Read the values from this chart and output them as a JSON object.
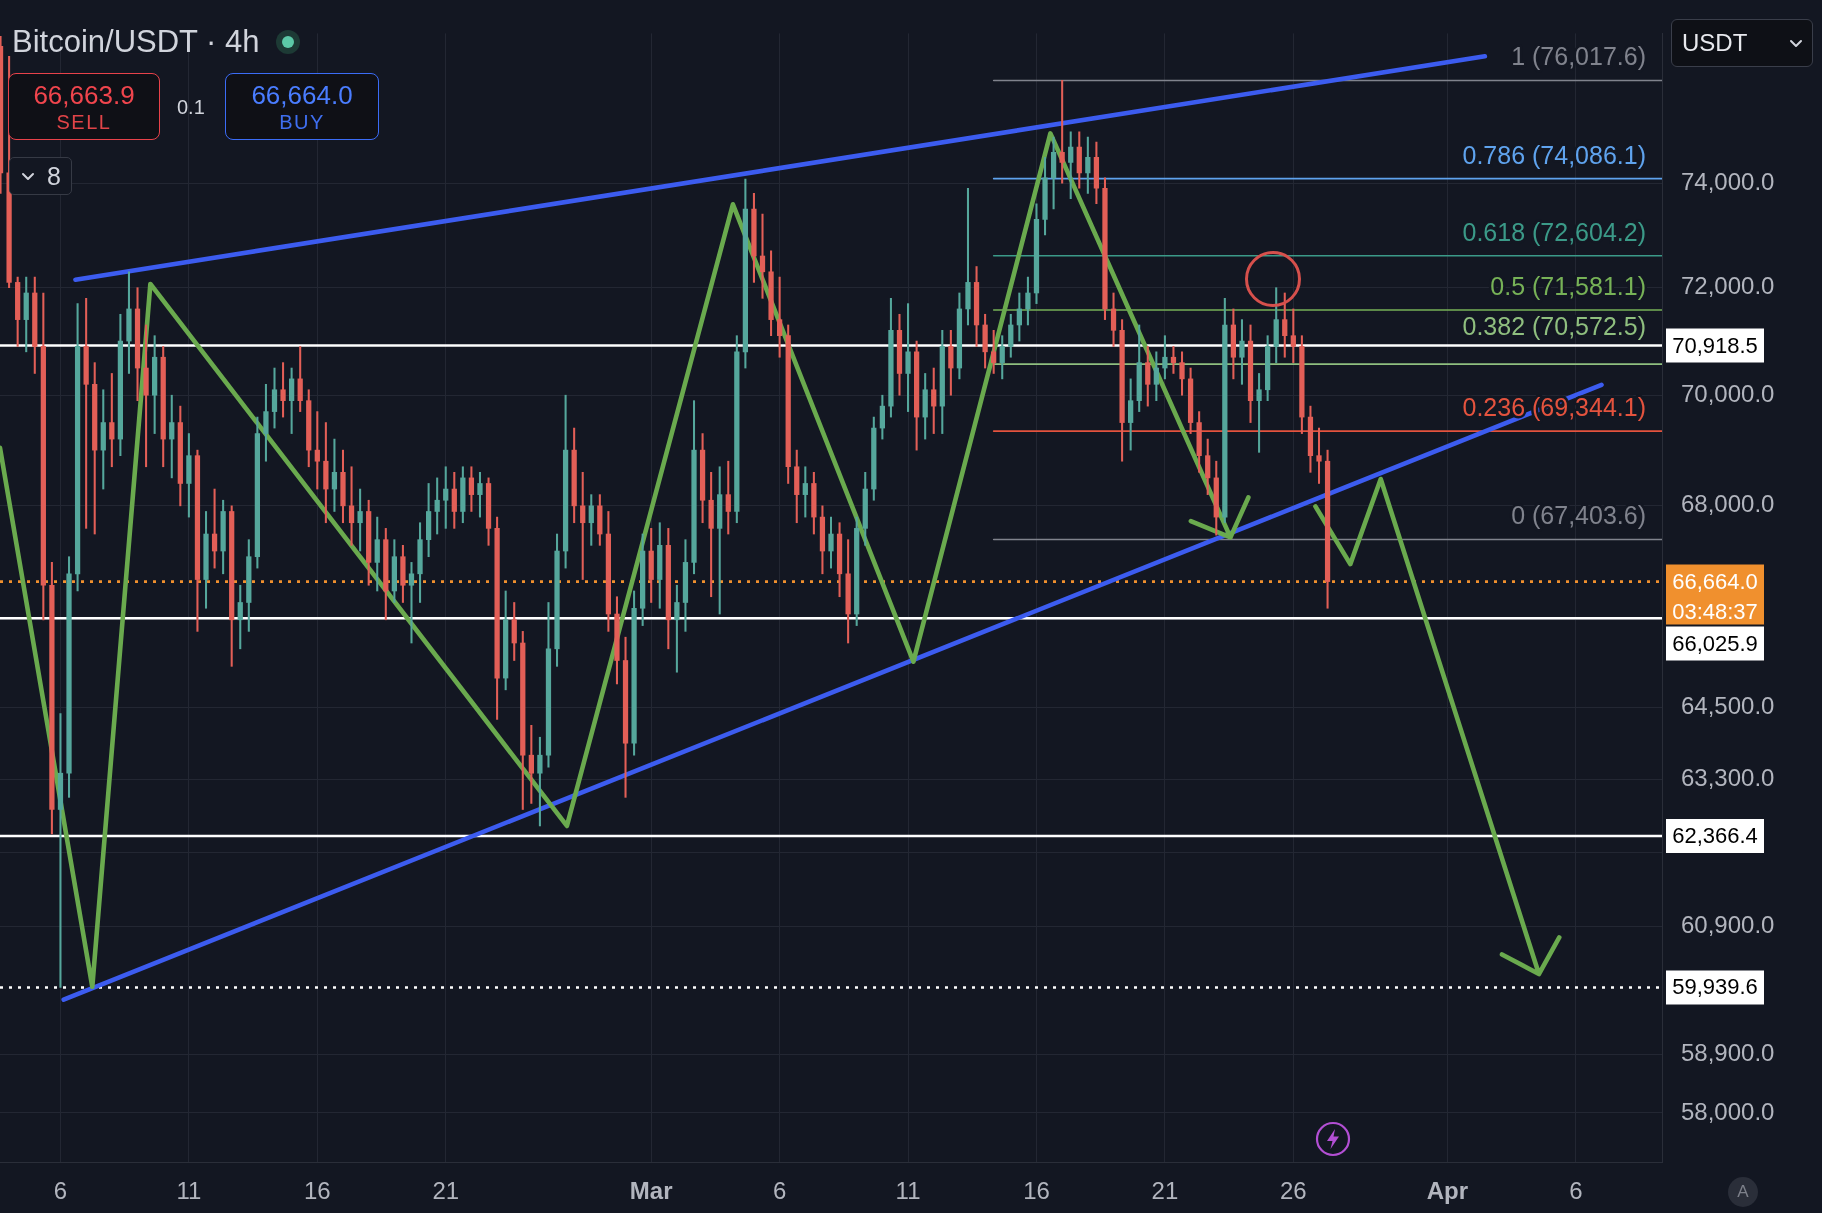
{
  "chart_data": {
    "type": "candlestick",
    "title": "Bitcoin/USDT · 4h",
    "x": [
      "--02-03T16:00",
      "--02-04T00:00",
      "--02-04T08:00",
      "--02-04T16:00",
      "--02-05T00:00",
      "--02-05T08:00",
      "--02-05T16:00",
      "--02-06T00:00",
      "--02-06T08:00",
      "--02-06T16:00",
      "--02-07T00:00",
      "--02-07T08:00",
      "--02-07T16:00",
      "--02-08T00:00",
      "--02-08T08:00",
      "--02-08T16:00",
      "--02-09T00:00",
      "--02-09T08:00",
      "--02-09T16:00",
      "--02-10T00:00",
      "--02-10T08:00",
      "--02-10T16:00",
      "--02-11T00:00",
      "--02-11T08:00",
      "--02-11T16:00",
      "--02-12T00:00",
      "--02-12T08:00",
      "--02-12T16:00",
      "--02-13T00:00",
      "--02-13T08:00",
      "--02-13T16:00",
      "--02-14T00:00",
      "--02-14T08:00",
      "--02-14T16:00",
      "--02-15T00:00",
      "--02-15T08:00",
      "--02-15T16:00",
      "--02-16T00:00",
      "--02-16T08:00",
      "--02-16T16:00",
      "--02-17T00:00",
      "--02-17T08:00",
      "--02-17T16:00",
      "--02-18T00:00",
      "--02-18T08:00",
      "--02-18T16:00",
      "--02-19T00:00",
      "--02-19T08:00",
      "--02-19T16:00",
      "--02-20T00:00",
      "--02-20T08:00",
      "--02-20T16:00",
      "--02-21T00:00",
      "--02-21T08:00",
      "--02-21T16:00",
      "--02-22T00:00",
      "--02-22T08:00",
      "--02-22T16:00",
      "--02-23T00:00",
      "--02-23T08:00",
      "--02-23T16:00",
      "--02-24T00:00",
      "--02-24T08:00",
      "--02-24T16:00",
      "--02-25T00:00",
      "--02-25T08:00",
      "--02-25T16:00",
      "--02-26T00:00",
      "--02-26T08:00",
      "--02-26T16:00",
      "--02-27T00:00",
      "--02-27T08:00",
      "--02-27T16:00",
      "--02-28T00:00",
      "--02-28T08:00",
      "--02-28T16:00",
      "--03-01T00:00",
      "--03-01T08:00",
      "--03-01T16:00",
      "--03-02T00:00",
      "--03-02T08:00",
      "--03-02T16:00",
      "--03-03T00:00",
      "--03-03T08:00",
      "--03-03T16:00",
      "--03-04T00:00",
      "--03-04T08:00",
      "--03-04T16:00",
      "--03-05T00:00",
      "--03-05T08:00",
      "--03-05T16:00",
      "--03-06T00:00",
      "--03-06T08:00",
      "--03-06T16:00",
      "--03-07T00:00",
      "--03-07T08:00",
      "--03-07T16:00",
      "--03-08T00:00",
      "--03-08T08:00",
      "--03-08T16:00",
      "--03-09T00:00",
      "--03-09T08:00",
      "--03-09T16:00",
      "--03-10T00:00",
      "--03-10T08:00",
      "--03-10T16:00",
      "--03-11T00:00",
      "--03-11T08:00",
      "--03-11T16:00",
      "--03-12T00:00",
      "--03-12T08:00",
      "--03-12T16:00",
      "--03-13T00:00",
      "--03-13T08:00",
      "--03-13T16:00",
      "--03-14T00:00",
      "--03-14T08:00",
      "--03-14T16:00",
      "--03-15T00:00",
      "--03-15T08:00",
      "--03-15T16:00",
      "--03-16T00:00",
      "--03-16T08:00",
      "--03-16T16:00",
      "--03-17T00:00",
      "--03-17T08:00",
      "--03-17T16:00",
      "--03-18T00:00",
      "--03-18T08:00",
      "--03-18T16:00",
      "--03-19T00:00",
      "--03-19T08:00",
      "--03-19T16:00",
      "--03-20T00:00",
      "--03-20T08:00",
      "--03-20T16:00",
      "--03-21T00:00",
      "--03-21T08:00",
      "--03-21T16:00",
      "--03-22T00:00",
      "--03-22T08:00",
      "--03-22T16:00",
      "--03-23T00:00",
      "--03-23T08:00",
      "--03-23T16:00",
      "--03-24T00:00",
      "--03-24T08:00",
      "--03-24T16:00",
      "--03-25T00:00",
      "--03-25T08:00",
      "--03-25T16:00",
      "--03-26T00:00",
      "--03-26T08:00",
      "--03-26T16:00",
      "--03-27T00:00",
      "--03-27T08:00"
    ],
    "ohlc": [
      [
        76700,
        76900,
        73800,
        74200
      ],
      [
        74200,
        76500,
        72000,
        72100
      ],
      [
        72100,
        72200,
        70900,
        71400
      ],
      [
        71400,
        72200,
        70800,
        71900
      ],
      [
        71900,
        72200,
        70400,
        70900
      ],
      [
        70900,
        71900,
        66000,
        66600
      ],
      [
        66600,
        67000,
        62400,
        62800
      ],
      [
        62800,
        64400,
        59940,
        63400
      ],
      [
        63400,
        67100,
        63000,
        66800
      ],
      [
        66800,
        71700,
        66500,
        70900
      ],
      [
        70900,
        71800,
        67600,
        70200
      ],
      [
        70200,
        70600,
        67500,
        69000
      ],
      [
        69000,
        70100,
        68300,
        69500
      ],
      [
        69500,
        70400,
        68700,
        69200
      ],
      [
        69200,
        71500,
        68900,
        71000
      ],
      [
        71000,
        72300,
        70400,
        71600
      ],
      [
        71600,
        72000,
        69900,
        70500
      ],
      [
        70500,
        71300,
        68700,
        70000
      ],
      [
        70000,
        71100,
        69300,
        70700
      ],
      [
        70700,
        70900,
        68700,
        69200
      ],
      [
        69200,
        70000,
        68500,
        69500
      ],
      [
        69500,
        69800,
        68000,
        68400
      ],
      [
        68400,
        69300,
        67800,
        68900
      ],
      [
        68900,
        69000,
        65800,
        66700
      ],
      [
        66700,
        67900,
        66200,
        67500
      ],
      [
        67500,
        68300,
        66900,
        67200
      ],
      [
        67200,
        68100,
        66800,
        67900
      ],
      [
        67900,
        68000,
        65200,
        66000
      ],
      [
        66000,
        66600,
        65500,
        66300
      ],
      [
        66300,
        67400,
        65800,
        67100
      ],
      [
        67100,
        69600,
        66900,
        69300
      ],
      [
        69300,
        70200,
        68800,
        69700
      ],
      [
        69700,
        70500,
        69400,
        70100
      ],
      [
        70100,
        70600,
        69600,
        69900
      ],
      [
        69900,
        70500,
        69300,
        70300
      ],
      [
        70300,
        70900,
        69700,
        69900
      ],
      [
        69900,
        70100,
        68700,
        69000
      ],
      [
        69000,
        69700,
        68300,
        68800
      ],
      [
        68800,
        69500,
        67700,
        68300
      ],
      [
        68300,
        69200,
        67900,
        68600
      ],
      [
        68600,
        69000,
        67700,
        68000
      ],
      [
        68000,
        68700,
        67300,
        67700
      ],
      [
        67700,
        68300,
        67200,
        67900
      ],
      [
        67900,
        68100,
        66600,
        67000
      ],
      [
        67000,
        67800,
        66500,
        67400
      ],
      [
        67400,
        67600,
        66000,
        66500
      ],
      [
        66500,
        67400,
        66300,
        67100
      ],
      [
        67100,
        67300,
        66300,
        66600
      ],
      [
        66600,
        67000,
        65600,
        66800
      ],
      [
        66800,
        67700,
        66300,
        67400
      ],
      [
        67400,
        68400,
        67100,
        67900
      ],
      [
        67900,
        68500,
        67500,
        68100
      ],
      [
        68100,
        68700,
        67600,
        68300
      ],
      [
        68300,
        68600,
        67600,
        67900
      ],
      [
        67900,
        68700,
        67700,
        68500
      ],
      [
        68500,
        68700,
        67900,
        68200
      ],
      [
        68200,
        68600,
        67800,
        68400
      ],
      [
        68400,
        68500,
        67300,
        67600
      ],
      [
        67600,
        67800,
        64300,
        65000
      ],
      [
        65000,
        66500,
        64800,
        66000
      ],
      [
        66000,
        66300,
        65300,
        65600
      ],
      [
        65600,
        65800,
        62800,
        63700
      ],
      [
        63700,
        64200,
        62900,
        63400
      ],
      [
        63400,
        64000,
        62530,
        63700
      ],
      [
        63700,
        66300,
        63500,
        65500
      ],
      [
        65500,
        67500,
        65200,
        67200
      ],
      [
        67200,
        70000,
        66900,
        69000
      ],
      [
        69000,
        69400,
        67700,
        68000
      ],
      [
        68000,
        68600,
        66700,
        67700
      ],
      [
        67700,
        68200,
        67300,
        68000
      ],
      [
        68000,
        68200,
        67300,
        67500
      ],
      [
        67500,
        67900,
        65800,
        66100
      ],
      [
        66100,
        66400,
        64900,
        65300
      ],
      [
        65300,
        65700,
        63000,
        63900
      ],
      [
        63900,
        66500,
        63700,
        66200
      ],
      [
        66200,
        67500,
        65900,
        67200
      ],
      [
        67200,
        67600,
        66300,
        66700
      ],
      [
        66700,
        67700,
        66200,
        67300
      ],
      [
        67300,
        67600,
        65500,
        66000
      ],
      [
        66000,
        66600,
        65100,
        66300
      ],
      [
        66300,
        67400,
        65800,
        67000
      ],
      [
        67000,
        69900,
        66800,
        69000
      ],
      [
        69000,
        69300,
        67700,
        68100
      ],
      [
        68100,
        68600,
        66400,
        67600
      ],
      [
        67600,
        68700,
        66100,
        68200
      ],
      [
        68200,
        68800,
        67500,
        67900
      ],
      [
        67900,
        71100,
        67700,
        70800
      ],
      [
        70800,
        74080,
        70500,
        73500
      ],
      [
        73500,
        73800,
        72100,
        72600
      ],
      [
        72600,
        73400,
        71800,
        72300
      ],
      [
        72300,
        72700,
        71100,
        71400
      ],
      [
        71400,
        72200,
        70700,
        71100
      ],
      [
        71100,
        71300,
        68400,
        68700
      ],
      [
        68700,
        69000,
        67700,
        68200
      ],
      [
        68200,
        68700,
        67800,
        68400
      ],
      [
        68400,
        68600,
        67500,
        67800
      ],
      [
        67800,
        68000,
        66800,
        67200
      ],
      [
        67200,
        67800,
        66900,
        67500
      ],
      [
        67500,
        67700,
        66400,
        66800
      ],
      [
        66800,
        67400,
        65600,
        66100
      ],
      [
        66100,
        67800,
        65900,
        67600
      ],
      [
        67600,
        68600,
        67300,
        68300
      ],
      [
        68300,
        69600,
        68100,
        69400
      ],
      [
        69400,
        70000,
        69200,
        69800
      ],
      [
        69800,
        71800,
        69600,
        71200
      ],
      [
        71200,
        71500,
        70000,
        70400
      ],
      [
        70400,
        71700,
        69700,
        70800
      ],
      [
        70800,
        71000,
        69000,
        69600
      ],
      [
        69600,
        70400,
        69200,
        70100
      ],
      [
        70100,
        70500,
        69300,
        69800
      ],
      [
        69800,
        71200,
        69300,
        70900
      ],
      [
        70900,
        71200,
        70000,
        70500
      ],
      [
        70500,
        71900,
        70300,
        71600
      ],
      [
        71600,
        73900,
        71300,
        72100
      ],
      [
        72100,
        72400,
        70900,
        71300
      ],
      [
        71300,
        71500,
        70500,
        70800
      ],
      [
        70800,
        71200,
        70400,
        70600
      ],
      [
        70600,
        71100,
        70300,
        70900
      ],
      [
        70900,
        71500,
        70700,
        71300
      ],
      [
        71300,
        71900,
        71000,
        71600
      ],
      [
        71600,
        72200,
        71300,
        71900
      ],
      [
        71900,
        73600,
        71700,
        73300
      ],
      [
        73300,
        74500,
        73000,
        74100
      ],
      [
        74100,
        74900,
        73500,
        74600
      ],
      [
        74600,
        76017.6,
        74000,
        74400
      ],
      [
        74400,
        75000,
        73700,
        74700
      ],
      [
        74700,
        75000,
        73900,
        74200
      ],
      [
        74200,
        74900,
        73800,
        74500
      ],
      [
        74500,
        74800,
        73600,
        73900
      ],
      [
        73900,
        74100,
        71400,
        71600
      ],
      [
        71600,
        71900,
        70900,
        71200
      ],
      [
        71200,
        71400,
        68800,
        69500
      ],
      [
        69500,
        70300,
        69000,
        69900
      ],
      [
        69900,
        71300,
        69700,
        70600
      ],
      [
        70600,
        70900,
        69800,
        70200
      ],
      [
        70200,
        70800,
        69900,
        70500
      ],
      [
        70500,
        71100,
        70300,
        70700
      ],
      [
        70700,
        70900,
        70400,
        70600
      ],
      [
        70600,
        70800,
        70000,
        70300
      ],
      [
        70300,
        70500,
        69300,
        69500
      ],
      [
        69500,
        69700,
        68600,
        68900
      ],
      [
        68900,
        69200,
        68200,
        68500
      ],
      [
        68500,
        68800,
        67480,
        67800
      ],
      [
        67800,
        71800,
        67700,
        71300
      ],
      [
        71300,
        71600,
        70300,
        70700
      ],
      [
        70700,
        71400,
        70200,
        71000
      ],
      [
        71000,
        71300,
        69500,
        69900
      ],
      [
        69900,
        70400,
        68960,
        70100
      ],
      [
        70100,
        71100,
        69900,
        70900
      ],
      [
        70900,
        72000,
        70600,
        71400
      ],
      [
        71400,
        71900,
        70700,
        71100
      ],
      [
        71100,
        71600,
        70600,
        70900
      ],
      [
        70900,
        71100,
        69300,
        69600
      ],
      [
        69600,
        69800,
        68600,
        68900
      ],
      [
        68900,
        69400,
        68400,
        68800
      ],
      [
        68800,
        69000,
        66200,
        66664
      ]
    ],
    "colors": [
      "#e35f57",
      "#e35f57",
      "#e35f57",
      "#55a79c",
      "#e35f57",
      "#e35f57",
      "#e35f57",
      "#55a79c",
      "#55a79c",
      "#55a79c",
      "#e35f57",
      "#e35f57",
      "#55a79c",
      "#e35f57",
      "#55a79c",
      "#55a79c",
      "#e35f57",
      "#e35f57",
      "#55a79c",
      "#e35f57",
      "#55a79c",
      "#e35f57",
      "#55a79c",
      "#e35f57",
      "#55a79c",
      "#e35f57",
      "#55a79c",
      "#e35f57",
      "#55a79c",
      "#55a79c",
      "#55a79c",
      "#55a79c",
      "#55a79c",
      "#e35f57",
      "#55a79c",
      "#e35f57",
      "#e35f57",
      "#e35f57",
      "#e35f57",
      "#55a79c",
      "#e35f57",
      "#e35f57",
      "#55a79c",
      "#e35f57",
      "#55a79c",
      "#e35f57",
      "#55a79c",
      "#e35f57",
      "#55a79c",
      "#55a79c",
      "#55a79c",
      "#55a79c",
      "#55a79c",
      "#e35f57",
      "#55a79c",
      "#e35f57",
      "#55a79c",
      "#e35f57",
      "#e35f57",
      "#55a79c",
      "#e35f57",
      "#e35f57",
      "#e35f57",
      "#55a79c",
      "#55a79c",
      "#55a79c",
      "#55a79c",
      "#e35f57",
      "#e35f57",
      "#55a79c",
      "#e35f57",
      "#e35f57",
      "#e35f57",
      "#e35f57",
      "#55a79c",
      "#55a79c",
      "#e35f57",
      "#55a79c",
      "#e35f57",
      "#55a79c",
      "#55a79c",
      "#55a79c",
      "#e35f57",
      "#e35f57",
      "#55a79c",
      "#e35f57",
      "#55a79c",
      "#55a79c",
      "#e35f57",
      "#e35f57",
      "#e35f57",
      "#e35f57",
      "#e35f57",
      "#e35f57",
      "#55a79c",
      "#e35f57",
      "#e35f57",
      "#55a79c",
      "#e35f57",
      "#e35f57",
      "#55a79c",
      "#55a79c",
      "#55a79c",
      "#55a79c",
      "#55a79c",
      "#e35f57",
      "#55a79c",
      "#e35f57",
      "#55a79c",
      "#e35f57",
      "#55a79c",
      "#e35f57",
      "#55a79c",
      "#55a79c",
      "#e35f57",
      "#e35f57",
      "#e35f57",
      "#55a79c",
      "#55a79c",
      "#55a79c",
      "#55a79c",
      "#55a79c",
      "#55a79c",
      "#55a79c",
      "#e35f57",
      "#55a79c",
      "#e35f57",
      "#55a79c",
      "#e35f57",
      "#e35f57",
      "#e35f57",
      "#e35f57",
      "#55a79c",
      "#55a79c",
      "#e35f57",
      "#55a79c",
      "#55a79c",
      "#e35f57",
      "#e35f57",
      "#e35f57",
      "#e35f57",
      "#e35f57",
      "#e35f57",
      "#55a79c",
      "#e35f57",
      "#55a79c",
      "#e35f57",
      "#55a79c",
      "#55a79c",
      "#55a79c",
      "#e35f57",
      "#e35f57",
      "#e35f57",
      "#e35f57",
      "#e35f57",
      "#e35f57"
    ],
    "series": [
      {
        "type": "line",
        "name": "1 (76,017.6)",
        "color": "#80838d",
        "x": [
          "--03-14T08:00",
          "--04-09T08:30"
        ],
        "values": [
          76017.6,
          76017.6
        ]
      },
      {
        "type": "line",
        "name": "0.786 (74,086.1)",
        "color": "#5fa3ee",
        "x": [
          "--03-14T08:00",
          "--04-09T08:30"
        ],
        "values": [
          74086.1,
          74086.1
        ]
      },
      {
        "type": "line",
        "name": "0.618 (72,604.2)",
        "color": "#3b9a88",
        "x": [
          "--03-14T08:00",
          "--04-09T08:30"
        ],
        "values": [
          72604.2,
          72604.2
        ]
      },
      {
        "type": "line",
        "name": "0.5 (71,581.1)",
        "color": "#77b257",
        "x": [
          "--03-14T08:00",
          "--04-09T08:30"
        ],
        "values": [
          71581.1,
          71581.1
        ]
      },
      {
        "type": "line",
        "name": "0.382 (70,572.5)",
        "color": "#8fbf7f",
        "x": [
          "--03-14T08:00",
          "--04-09T08:30"
        ],
        "values": [
          70572.5,
          70572.5
        ]
      },
      {
        "type": "line",
        "name": "0.236 (69,344.1)",
        "color": "#e4533e",
        "x": [
          "--03-14T08:00",
          "--04-09T08:30"
        ],
        "values": [
          69344.1,
          69344.1
        ]
      },
      {
        "type": "line",
        "name": "0 (67,403.6)",
        "color": "#80838d",
        "x": [
          "--03-14T08:00",
          "--04-09T08:30"
        ],
        "values": [
          67403.6,
          67403.6
        ]
      },
      {
        "type": "line",
        "color": "#3c5cf0",
        "x": [
          "--02-06T14:00",
          "--04-02T11:00"
        ],
        "values": [
          72150,
          76500
        ]
      },
      {
        "type": "line",
        "color": "#3c5cf0",
        "x": [
          "--02-06T03:00",
          "--04-07T00:00"
        ],
        "values": [
          59750,
          70190
        ]
      },
      {
        "type": "line",
        "color": "#6aaa4e",
        "x": [
          "--02-03T15:30",
          "--02-07T05:45",
          "--02-09T12:00",
          "--02-25T17:15",
          "--03-04T04:20",
          "--03-11T05:00",
          "--03-16T13:00",
          "--03-23T13:15",
          "--03-22T00:15",
          "--03-23T13:15",
          "--03-24T06:00"
        ],
        "values": [
          69040,
          59950,
          72070,
          62530,
          73590,
          65280,
          74970,
          67440,
          67730,
          67440,
          68150
        ]
      },
      {
        "type": "line",
        "color": "#6aaa4e",
        "x": [
          "--03-26T20:40",
          "--03-28T05:15",
          "--03-29T09:40",
          "--04-04T13:30",
          "--04-03T03:00",
          "--04-04T13:30",
          "--04-05T08:30"
        ],
        "values": [
          67990,
          66970,
          68480,
          60150,
          60460,
          60150,
          60730
        ]
      }
    ],
    "ref_lines": [
      {
        "axis": "y",
        "value": 70918.5,
        "label": "70,918.5",
        "color": "#ffffff"
      },
      {
        "axis": "y",
        "value": 66664,
        "label": "66,664.0",
        "color": "#f0902e",
        "line_style": "dotted"
      },
      {
        "axis": "y",
        "value": 66025.9,
        "label": "66,025.9",
        "color": "#ffffff"
      },
      {
        "axis": "y",
        "value": 62366.4,
        "label": "62,366.4",
        "color": "#ffffff"
      },
      {
        "axis": "y",
        "value": 59939.6,
        "label": "59,939.6",
        "color": "#ffffff",
        "line_style": "dotted"
      }
    ],
    "annotations": [
      "66,663.9",
      "SELL",
      "0.1",
      "66,664.0",
      "BUY",
      "8",
      "USDT",
      "A",
      "03:48:37"
    ],
    "xlim": [
      "--02-03T15:30",
      "--04-09T08:30"
    ],
    "xticks": [
      {
        "value": "--02-06",
        "label": "6"
      },
      {
        "value": "--02-11",
        "label": "11"
      },
      {
        "value": "--02-16",
        "label": "16"
      },
      {
        "value": "--02-21",
        "label": "21"
      },
      {
        "value": "--03-01",
        "label": "Mar"
      },
      {
        "value": "--03-06",
        "label": "6"
      },
      {
        "value": "--03-11",
        "label": "11"
      },
      {
        "value": "--03-16",
        "label": "16"
      },
      {
        "value": "--03-21",
        "label": "21"
      },
      {
        "value": "--03-26",
        "label": "26"
      },
      {
        "value": "--04-01",
        "label": "Apr"
      },
      {
        "value": "--04-06",
        "label": "6"
      }
    ],
    "ylim": [
      57260,
      76960
    ],
    "yticks": [
      {
        "value": 58000,
        "label": "58,000.0"
      },
      {
        "value": 58900,
        "label": "58,900.0"
      },
      {
        "value": 60900,
        "label": "60,900.0"
      },
      {
        "value": 62100,
        "label": null
      },
      {
        "value": 63300,
        "label": "63,300.0"
      },
      {
        "value": 64500,
        "label": "64,500.0"
      },
      {
        "value": 66000,
        "label": null
      },
      {
        "value": 68000,
        "label": "68,000.0"
      },
      {
        "value": 70000,
        "label": "70,000.0"
      },
      {
        "value": 72000,
        "label": "72,000.0"
      },
      {
        "value": 74000,
        "label": "74,000.0"
      }
    ],
    "log": "y",
    "grid": true
  }
}
